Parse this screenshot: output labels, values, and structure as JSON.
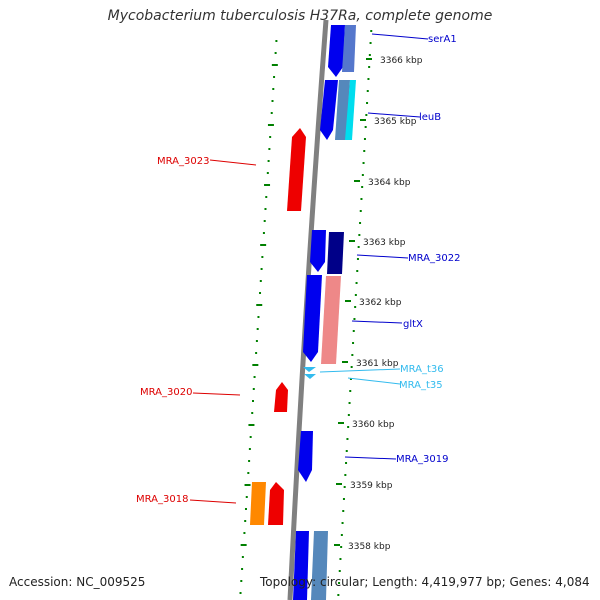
{
  "title": "Mycobacterium tuberculosis H37Ra, complete genome",
  "accession_text": "Accession: NC_009525",
  "stats_text": "Topology: circular; Length: 4,419,977 bp; Genes: 4,084",
  "kbp_labels": [
    "3366 kbp",
    "3365 kbp",
    "3364 kbp",
    "3363 kbp",
    "3362 kbp",
    "3361 kbp",
    "3360 kbp",
    "3359 kbp",
    "3358 kbp"
  ],
  "gene_labels": {
    "serA1": "serA1",
    "leuB": "leuB",
    "MRA_3023": "MRA_3023",
    "MRA_3022": "MRA_3022",
    "gltX": "gltX",
    "MRA_t36": "MRA_t36",
    "MRA_t35": "MRA_t35",
    "MRA_3020": "MRA_3020",
    "MRA_3019": "MRA_3019",
    "MRA_3018": "MRA_3018"
  },
  "colors": {
    "forward_gene": "#0000ee",
    "reverse_gene": "#ee0000",
    "trna": "#33bbee",
    "orange_gene": "#ff8800",
    "backbone": "#808080",
    "ticks": "#008000"
  }
}
